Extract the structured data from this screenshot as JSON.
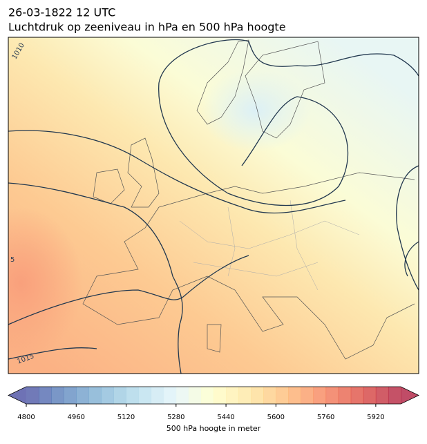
{
  "header": {
    "date": "26-03-1822 12 UTC",
    "title": "Luchtdruk op zeeniveau in hPa en 500 hPa hoogte"
  },
  "map": {
    "contour_labels": [
      "1010",
      "5",
      "1015"
    ]
  },
  "colorbar": {
    "range": [
      4800,
      6000
    ],
    "step": 40,
    "ticks": [
      4800,
      4960,
      5120,
      5280,
      5440,
      5600,
      5760,
      5920
    ],
    "label": "500 hPa hoogte in meter"
  }
}
